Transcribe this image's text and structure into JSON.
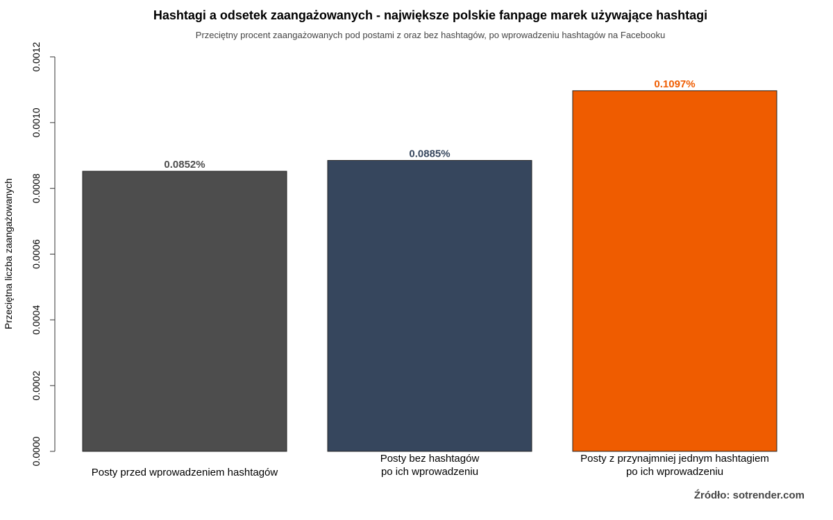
{
  "title": "Hashtagi a odsetek zaangażowanych - największe polskie fanpage marek używające hashtagi",
  "subtitle": "Przeciętny procent zaangażowanych pod postami z oraz bez hashtagów, po wprowadzeniu hashtagów na Facebooku",
  "source": "Źródło: sotrender.com",
  "chart_data": {
    "type": "bar",
    "title": "Hashtagi a odsetek zaangażowanych - największe polskie fanpage marek używające hashtagi",
    "subtitle": "Przeciętny procent zaangażowanych pod postami z oraz bez hashtagów, po wprowadzeniu hashtagów na Facebooku",
    "xlabel": "",
    "ylabel": "Przeciętna liczba zaangażowanych",
    "ylim": [
      0,
      0.0012
    ],
    "yticks": [
      "0.0000",
      "0.0002",
      "0.0004",
      "0.0006",
      "0.0008",
      "0.0010",
      "0.0012"
    ],
    "categories": [
      [
        "Posty przed wprowadzeniem hashtagów"
      ],
      [
        "Posty bez hashtagów",
        "po ich wprowadzeniu"
      ],
      [
        "Posty z przynajmniej jednym hashtagiem",
        "po ich wprowadzeniu"
      ]
    ],
    "values": [
      0.000852,
      0.000885,
      0.001097
    ],
    "data_labels": [
      "0.0852%",
      "0.0885%",
      "0.1097%"
    ],
    "colors": [
      "#4d4d4d",
      "#36465d",
      "#ef5c00"
    ],
    "label_colors": [
      "#4d4d4d",
      "#36465d",
      "#ef5c00"
    ],
    "grid": false,
    "legend": "none"
  }
}
